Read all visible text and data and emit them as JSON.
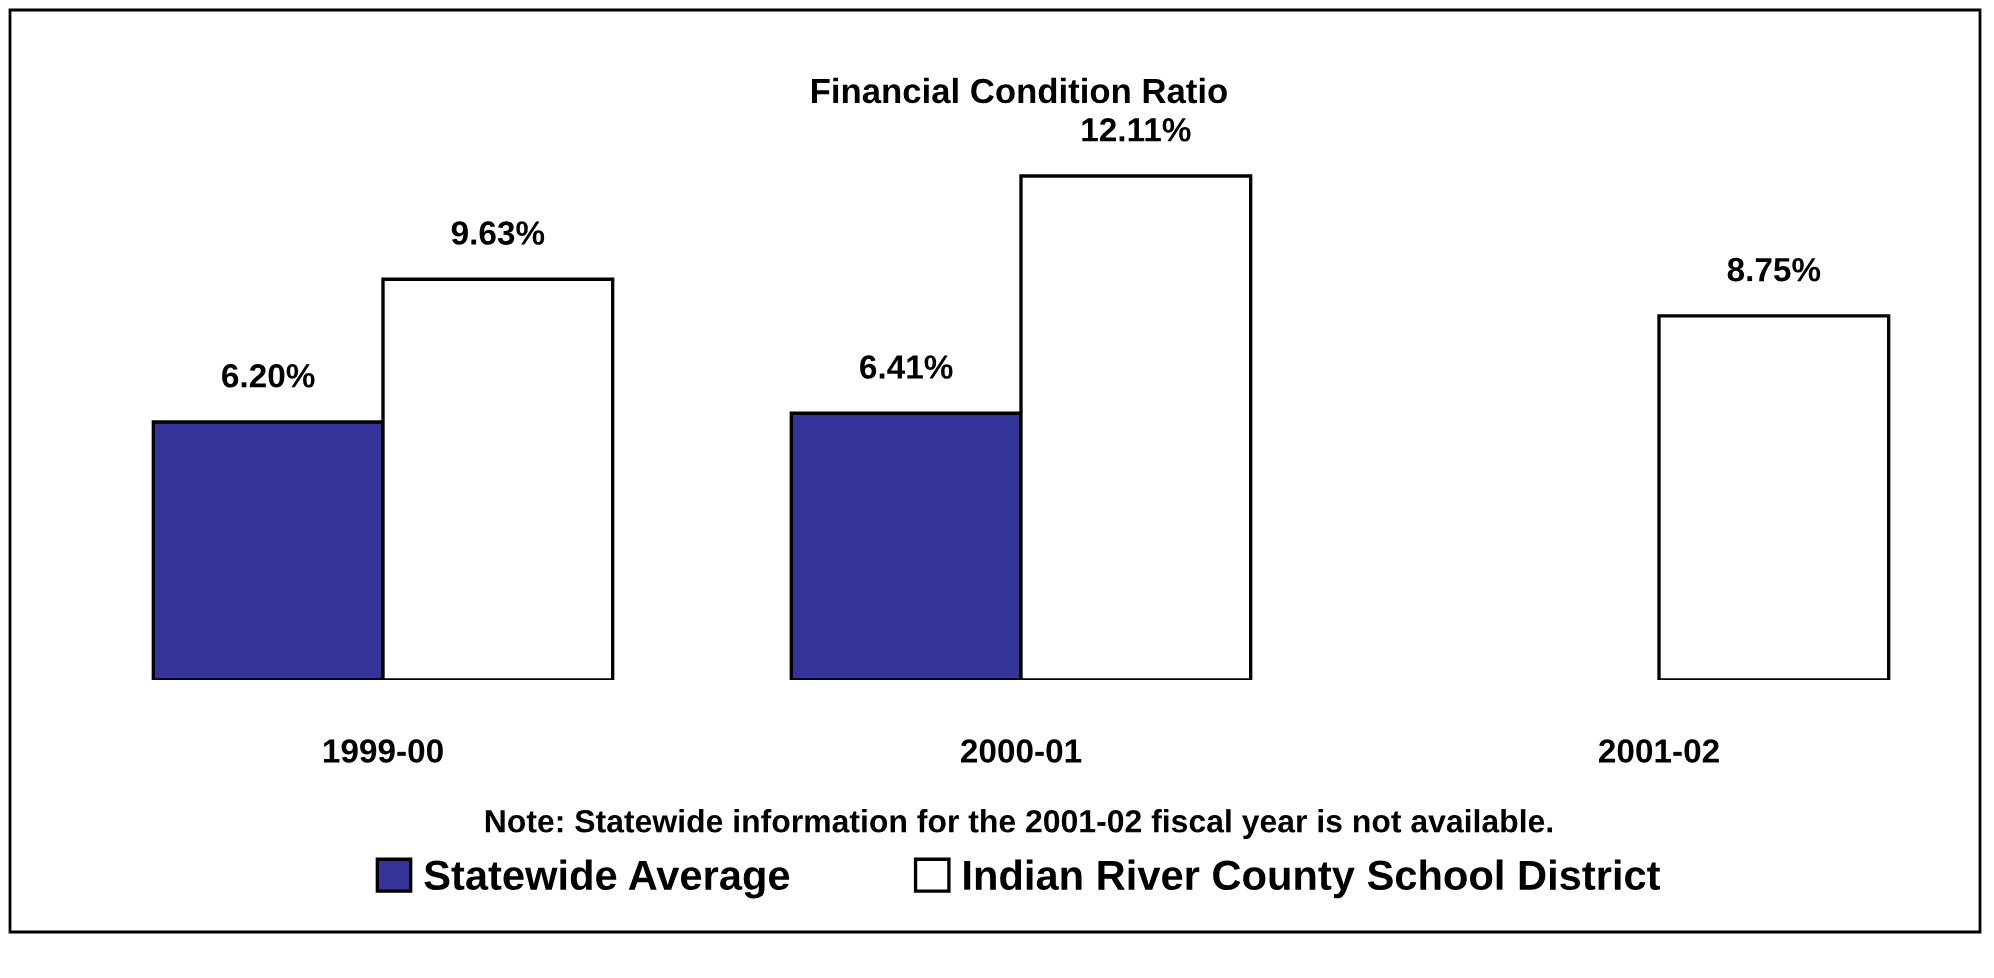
{
  "chart_data": {
    "type": "bar",
    "title": "Financial Condition Ratio",
    "categories": [
      "1999-00",
      "2000-01",
      "2001-02"
    ],
    "series": [
      {
        "name": "Statewide Average",
        "color": "#333399",
        "values": [
          6.2,
          6.41,
          null
        ],
        "value_labels": [
          "6.20%",
          "6.41%",
          null
        ]
      },
      {
        "name": "Indian River County School District",
        "color": "#ffffff",
        "values": [
          9.63,
          12.11,
          8.75
        ],
        "value_labels": [
          "9.63%",
          "12.11%",
          "8.75%"
        ]
      }
    ],
    "annotations": [
      "Note: Statewide information for the 2001-02 fiscal year is not available."
    ],
    "legend": "bottom",
    "grid": false
  }
}
